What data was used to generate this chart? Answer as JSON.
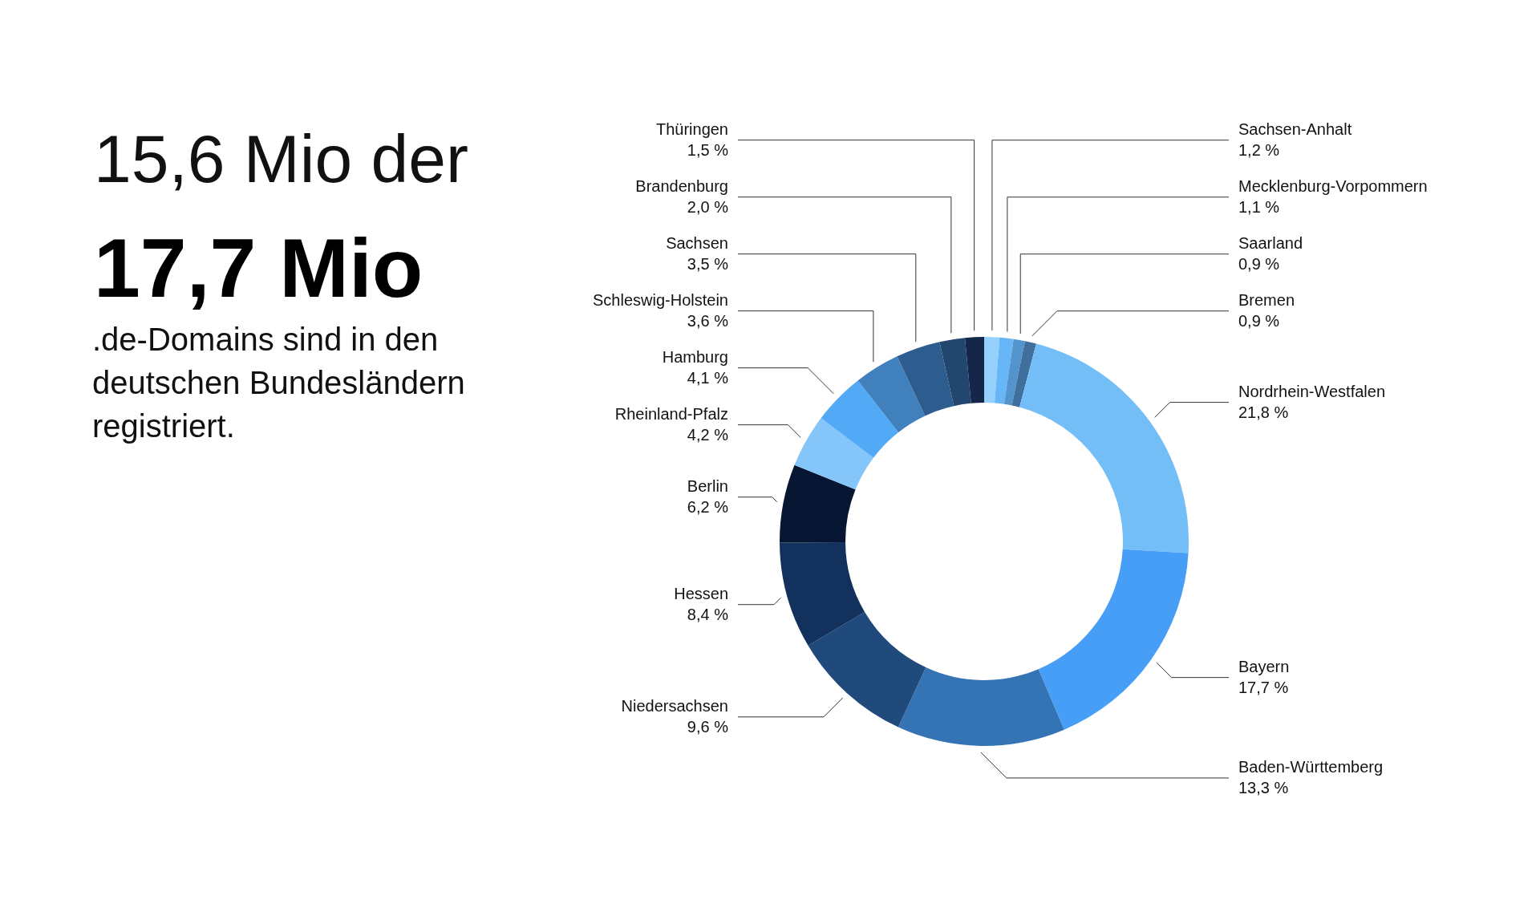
{
  "chart_data": {
    "type": "donut",
    "title": "15,6 Mio der",
    "subtitle": "17,7 Mio",
    "annotations": [
      ".de-Domains sind in den\ndeutschen Bundesländern\nregistriert."
    ],
    "categories": [
      "Sachsen-Anhalt",
      "Mecklenburg-Vorpommern",
      "Saarland",
      "Bremen",
      "Nordrhein-Westfalen",
      "Bayern",
      "Baden-Württemberg",
      "Niedersachsen",
      "Hessen",
      "Berlin",
      "Rheinland-Pfalz",
      "Hamburg",
      "Schleswig-Holstein",
      "Sachsen",
      "Brandenburg",
      "Thüringen"
    ],
    "values": [
      1.2,
      1.1,
      0.9,
      0.9,
      21.8,
      17.7,
      13.3,
      9.6,
      8.4,
      6.2,
      4.2,
      4.1,
      3.6,
      3.5,
      2.0,
      1.5
    ],
    "value_labels": [
      "1,2 %",
      "1,1 %",
      "0,9 %",
      "0,9 %",
      "21,8 %",
      "17,7 %",
      "13,3 %",
      "9,6 %",
      "8,4 %",
      "6,2 %",
      "4,2 %",
      "4,1 %",
      "3,6 %",
      "3,5 %",
      "2,0 %",
      "1,5 %"
    ],
    "colors": [
      "#96d0fc",
      "#66b6f8",
      "#5394cc",
      "#3f6f9c",
      "#74bef8",
      "#479ef6",
      "#3474b5",
      "#1f4a7b",
      "#13315d",
      "#071733",
      "#84c5fa",
      "#52aaf6",
      "#3f80bd",
      "#2d5d8f",
      "#23466f",
      "#15264b"
    ]
  }
}
